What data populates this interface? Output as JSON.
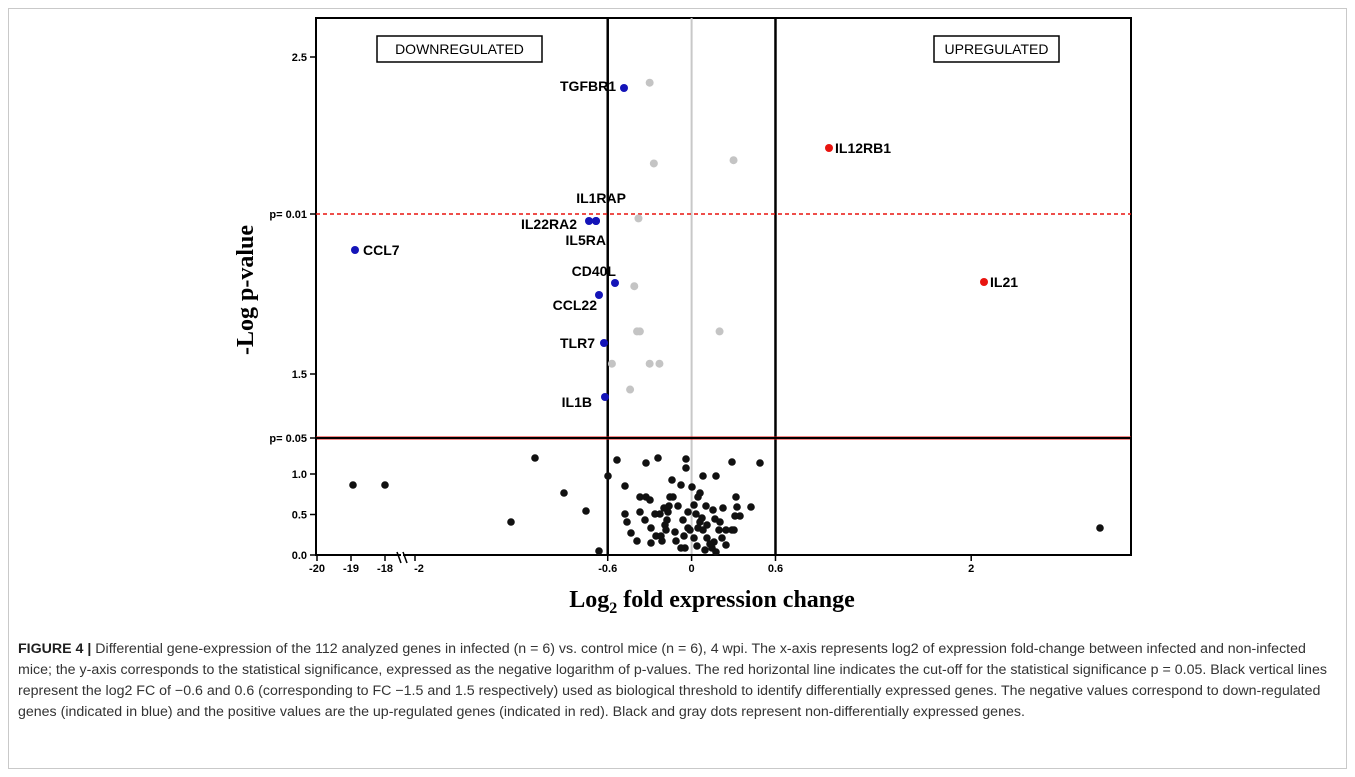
{
  "figure": {
    "label": "FIGURE 4 |",
    "caption": "Differential gene-expression of the 112 analyzed genes in infected (n = 6) vs. control mice (n = 6), 4 wpi. The x-axis represents log2 of expression fold-change between infected and non-infected mice; the y-axis corresponds to the statistical significance, expressed as the negative logarithm of p-values. The red horizontal line indicates the cut-off for the statistical significance p = 0.05. Black vertical lines represent the log2 FC of −0.6 and 0.6 (corresponding to FC −1.5 and 1.5 respectively) used as biological threshold to identify differentially expressed genes. The negative values correspond to down-regulated genes (indicated in blue) and the positive values are the up-regulated genes (indicated in red). Black and gray dots represent non-differentially expressed genes."
  },
  "chart_data": {
    "type": "scatter",
    "xlabel": "Log2 fold expression change",
    "ylabel": "-Log p-value",
    "x_broken_axis": {
      "left_segment_ticks": [
        "-20",
        "-19",
        "-18"
      ],
      "main_segment_ticks": [
        "-2",
        "-0.6",
        "0",
        "0.6",
        "2"
      ],
      "xlim_main": [
        -2.0,
        3.0
      ]
    },
    "y_upper_ticks": [
      "2.5",
      "p= 0.01",
      "1.5",
      "p= 0.05"
    ],
    "y_lower_ticks": [
      "0.0",
      "0.5",
      "1.0"
    ],
    "thresholds": {
      "x_lines": [
        -0.6,
        0.6
      ],
      "p_0_05_line_color": "#e8140f",
      "p_0_01_line_color": "#e8140f",
      "center_line_color": "#c8c8c8"
    },
    "region_labels": {
      "down": "DOWNREGULATED",
      "up": "UPREGULATED"
    },
    "colors": {
      "down": "#1414b8",
      "up": "#e8140f",
      "nonsig_upper": "#c4c4c4",
      "nonsig_lower": "#111111"
    },
    "y_upper_range": [
      1.3,
      2.6
    ],
    "downregulated": [
      {
        "gene": "TGFBR1",
        "x": -0.61,
        "y": 2.4
      },
      {
        "gene": "IL1RAP",
        "x": -0.68,
        "y": 1.99
      },
      {
        "gene": "IL22RA2",
        "x": -0.72,
        "y": 1.99
      },
      {
        "gene": "IL5RA",
        "x": -0.68,
        "y": 1.99
      },
      {
        "gene": "CCL7",
        "x": -19.2,
        "y": 1.91
      },
      {
        "gene": "CD40L",
        "x": -0.63,
        "y": 1.8
      },
      {
        "gene": "CCL22",
        "x": -0.68,
        "y": 1.77
      },
      {
        "gene": "TLR7",
        "x": -0.67,
        "y": 1.66
      },
      {
        "gene": "IL1B",
        "x": -0.67,
        "y": 1.53
      }
    ],
    "upregulated": [
      {
        "gene": "IL12RB1",
        "x": 0.85,
        "y": 2.16
      },
      {
        "gene": "IL21",
        "x": 1.94,
        "y": 1.8
      }
    ],
    "nonsignificant_upper": [
      [
        -0.3,
        2.4
      ],
      [
        -0.27,
        2.15
      ],
      [
        0.3,
        2.16
      ],
      [
        -0.38,
        1.98
      ],
      [
        -0.41,
        1.77
      ],
      [
        -0.37,
        1.63
      ],
      [
        -0.39,
        1.63
      ],
      [
        0.2,
        1.63
      ],
      [
        -0.57,
        1.53
      ],
      [
        -0.3,
        1.53
      ],
      [
        -0.23,
        1.53
      ],
      [
        -0.44,
        1.45
      ]
    ],
    "nonsignificant_lower_count": 89
  }
}
